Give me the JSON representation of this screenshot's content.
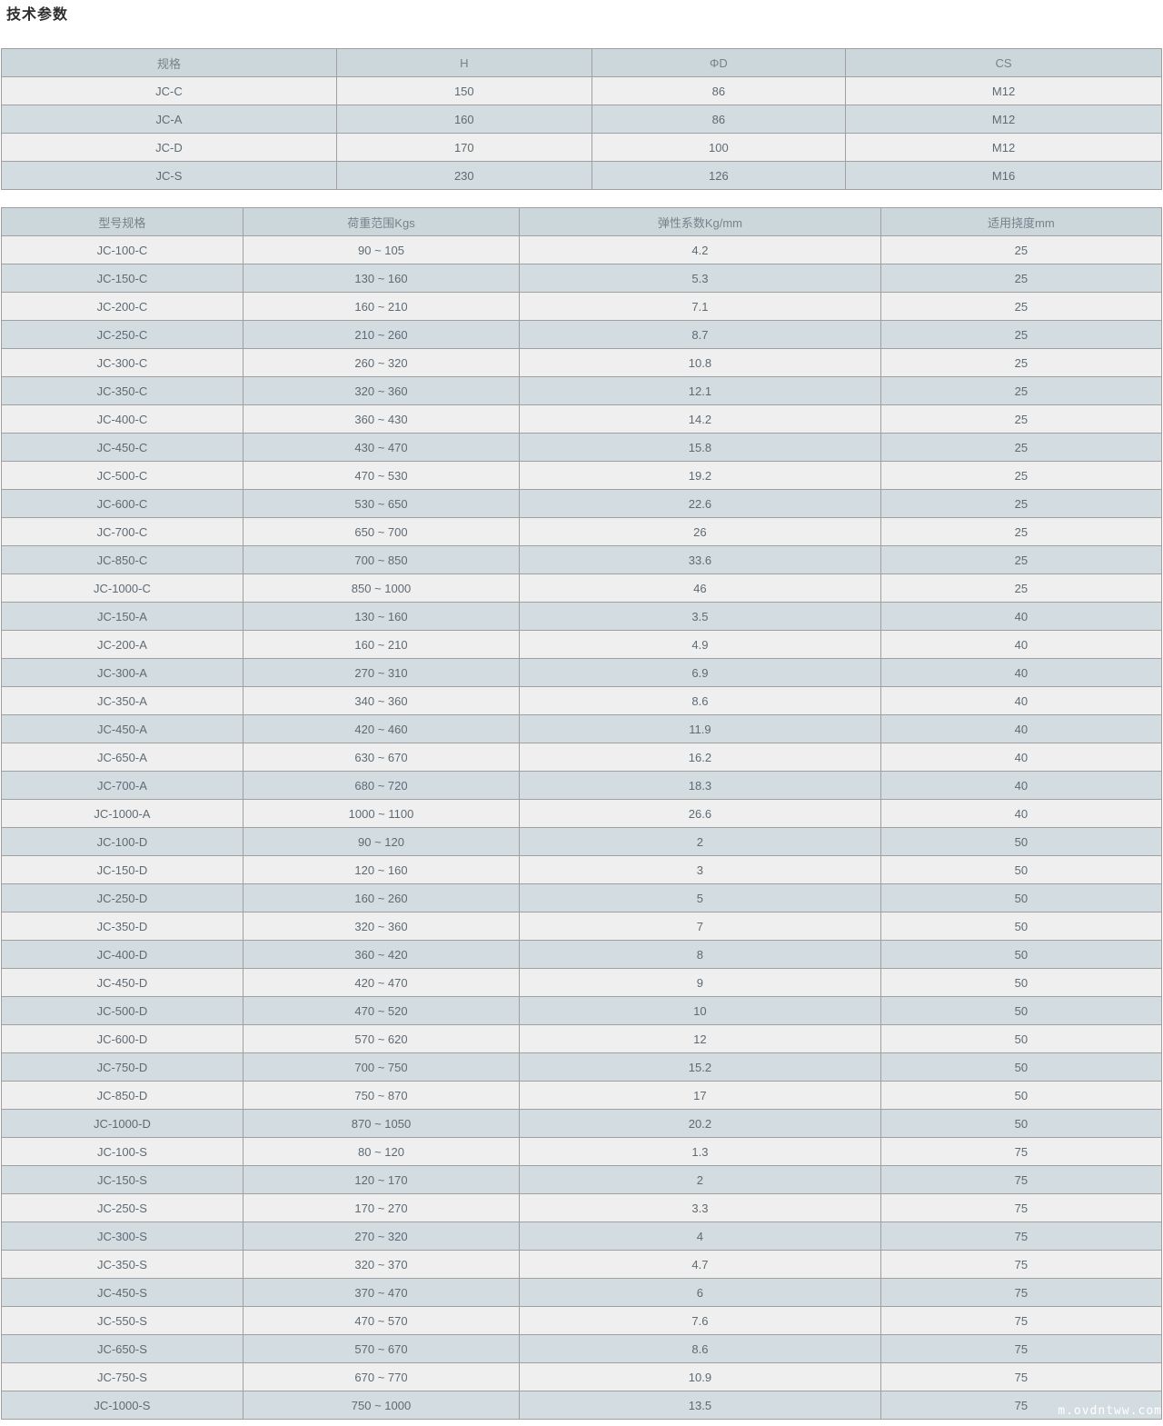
{
  "page": {
    "title": "技术参数",
    "watermark": "m.ovdntww.com"
  },
  "colors": {
    "header_bg": "#ccd7dc",
    "row_light_bg": "#efefef",
    "row_alt_bg": "#d2dce1",
    "border": "#a0a0a0",
    "header_text": "#76828b",
    "cell_text": "#5f6a72",
    "title_text": "#2d2d2d"
  },
  "spec_table": {
    "headers": [
      "规格",
      "H",
      "ΦD",
      "CS"
    ],
    "rows": [
      [
        "JC-C",
        "150",
        "86",
        "M12"
      ],
      [
        "JC-A",
        "160",
        "86",
        "M12"
      ],
      [
        "JC-D",
        "170",
        "100",
        "M12"
      ],
      [
        "JC-S",
        "230",
        "126",
        "M16"
      ]
    ]
  },
  "model_table": {
    "headers": [
      "型号规格",
      "荷重范围Kgs",
      "弹性系数Kg/mm",
      "适用挠度mm"
    ],
    "rows": [
      [
        "JC-100-C",
        "90 ~ 105",
        "4.2",
        "25"
      ],
      [
        "JC-150-C",
        "130 ~ 160",
        "5.3",
        "25"
      ],
      [
        "JC-200-C",
        "160 ~ 210",
        "7.1",
        "25"
      ],
      [
        "JC-250-C",
        "210 ~ 260",
        "8.7",
        "25"
      ],
      [
        "JC-300-C",
        "260 ~ 320",
        "10.8",
        "25"
      ],
      [
        "JC-350-C",
        "320 ~ 360",
        "12.1",
        "25"
      ],
      [
        "JC-400-C",
        "360 ~ 430",
        "14.2",
        "25"
      ],
      [
        "JC-450-C",
        "430 ~ 470",
        "15.8",
        "25"
      ],
      [
        "JC-500-C",
        "470 ~ 530",
        "19.2",
        "25"
      ],
      [
        "JC-600-C",
        "530 ~ 650",
        "22.6",
        "25"
      ],
      [
        "JC-700-C",
        "650 ~ 700",
        "26",
        "25"
      ],
      [
        "JC-850-C",
        "700 ~ 850",
        "33.6",
        "25"
      ],
      [
        "JC-1000-C",
        "850 ~ 1000",
        "46",
        "25"
      ],
      [
        "JC-150-A",
        "130 ~ 160",
        "3.5",
        "40"
      ],
      [
        "JC-200-A",
        "160 ~ 210",
        "4.9",
        "40"
      ],
      [
        "JC-300-A",
        "270 ~ 310",
        "6.9",
        "40"
      ],
      [
        "JC-350-A",
        "340 ~ 360",
        "8.6",
        "40"
      ],
      [
        "JC-450-A",
        "420 ~ 460",
        "11.9",
        "40"
      ],
      [
        "JC-650-A",
        "630 ~ 670",
        "16.2",
        "40"
      ],
      [
        "JC-700-A",
        "680 ~ 720",
        "18.3",
        "40"
      ],
      [
        "JC-1000-A",
        "1000 ~ 1100",
        "26.6",
        "40"
      ],
      [
        "JC-100-D",
        "90 ~ 120",
        "2",
        "50"
      ],
      [
        "JC-150-D",
        "120 ~ 160",
        "3",
        "50"
      ],
      [
        "JC-250-D",
        "160 ~ 260",
        "5",
        "50"
      ],
      [
        "JC-350-D",
        "320 ~ 360",
        "7",
        "50"
      ],
      [
        "JC-400-D",
        "360 ~ 420",
        "8",
        "50"
      ],
      [
        "JC-450-D",
        "420 ~ 470",
        "9",
        "50"
      ],
      [
        "JC-500-D",
        "470 ~ 520",
        "10",
        "50"
      ],
      [
        "JC-600-D",
        "570 ~ 620",
        "12",
        "50"
      ],
      [
        "JC-750-D",
        "700 ~ 750",
        "15.2",
        "50"
      ],
      [
        "JC-850-D",
        "750 ~ 870",
        "17",
        "50"
      ],
      [
        "JC-1000-D",
        "870 ~ 1050",
        "20.2",
        "50"
      ],
      [
        "JC-100-S",
        "80 ~ 120",
        "1.3",
        "75"
      ],
      [
        "JC-150-S",
        "120 ~ 170",
        "2",
        "75"
      ],
      [
        "JC-250-S",
        "170 ~ 270",
        "3.3",
        "75"
      ],
      [
        "JC-300-S",
        "270 ~ 320",
        "4",
        "75"
      ],
      [
        "JC-350-S",
        "320 ~ 370",
        "4.7",
        "75"
      ],
      [
        "JC-450-S",
        "370 ~ 470",
        "6",
        "75"
      ],
      [
        "JC-550-S",
        "470 ~ 570",
        "7.6",
        "75"
      ],
      [
        "JC-650-S",
        "570 ~ 670",
        "8.6",
        "75"
      ],
      [
        "JC-750-S",
        "670 ~ 770",
        "10.9",
        "75"
      ],
      [
        "JC-1000-S",
        "750 ~ 1000",
        "13.5",
        "75"
      ]
    ]
  }
}
